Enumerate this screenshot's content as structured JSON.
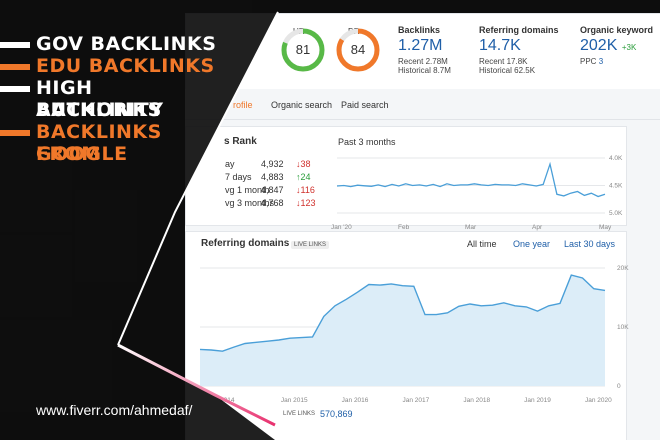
{
  "promo": {
    "lines": [
      {
        "text": "GOV BACKLINKS",
        "color": "#ffffff",
        "bar": "#ffffff"
      },
      {
        "text": "EDU BACKLINKS",
        "color": "#f0782a",
        "bar": "#f0782a"
      },
      {
        "text": "HIGH AUTHORITY",
        "color": "#ffffff",
        "bar": "#ffffff"
      },
      {
        "text": "BACKLINKS",
        "color": "#ffffff",
        "bar": null
      },
      {
        "text": "BACKLINKS FROM",
        "color": "#f0782a",
        "bar": "#f0782a"
      },
      {
        "text": "GOOGLE",
        "color": "#f0782a",
        "bar": null
      }
    ],
    "url": "www.fiverr.com/ahmedaf/",
    "accent": "#e8306e"
  },
  "metrics": {
    "ur": {
      "label": "UR",
      "value": "81",
      "fraction": 0.81,
      "color": "#58b947"
    },
    "dr": {
      "label": "DR",
      "value": "84",
      "fraction": 0.84,
      "color": "#f0782a"
    },
    "backlinks": {
      "label": "Backlinks",
      "value": "1.27M",
      "recent": "Recent 2.78M",
      "historical": "Historical 8.7M"
    },
    "referring": {
      "label": "Referring domains",
      "value": "14.7K",
      "recent": "Recent 17.8K",
      "historical": "Historical 62.5K"
    },
    "organic": {
      "label": "Organic keyword",
      "value": "202K",
      "change": "+3K",
      "ppc_label": "PPC",
      "ppc_value": "3"
    }
  },
  "tabs": [
    "rofile",
    "Organic search",
    "Paid search"
  ],
  "rank": {
    "title": "s Rank",
    "rows": [
      {
        "label": "ay",
        "value": "4,932",
        "change": "↓38",
        "dir": "down"
      },
      {
        "label": "7 days",
        "value": "4,883",
        "change": "↑24",
        "dir": "up"
      },
      {
        "label": "vg 1 month",
        "value": "4,847",
        "change": "↓116",
        "dir": "down"
      },
      {
        "label": "vg 3 months",
        "value": "4,768",
        "change": "↓123",
        "dir": "down"
      }
    ],
    "period": "Past 3 months"
  },
  "small_chart": {
    "type": "line",
    "x_ticks": [
      "Jan '20",
      "Feb",
      "Mar",
      "Apr",
      "May"
    ],
    "y_ticks": [
      "4.0K",
      "4.5K",
      "5.0K"
    ],
    "y_range": [
      4000,
      5000
    ],
    "values": [
      4510,
      4500,
      4520,
      4495,
      4505,
      4515,
      4490,
      4520,
      4480,
      4510,
      4470,
      4500,
      4490,
      4510,
      4480,
      4520,
      4470,
      4500,
      4490,
      4490,
      4470,
      4490,
      4500,
      4480,
      4490,
      4490,
      4500,
      4470,
      4490,
      4510,
      4480,
      4110,
      4660,
      4690,
      4640,
      4610,
      4680,
      4640,
      4700,
      4660
    ]
  },
  "refdomains": {
    "title": "Referring domains",
    "badge": "LIVE LINKS",
    "filters": [
      "All time",
      "One year",
      "Last 30 days"
    ],
    "active_filter": "All time",
    "footer_badge": "LIVE LINKS",
    "footer_value": "570,869"
  },
  "ref_chart": {
    "type": "line",
    "x_ticks": [
      "2014",
      "Jan 2015",
      "Jan 2016",
      "Jan 2017",
      "Jan 2018",
      "Jan 2019",
      "Jan 2020"
    ],
    "y_ticks": [
      "20K",
      "10K",
      "0"
    ],
    "y_range": [
      0,
      20000
    ],
    "values": [
      6200,
      6100,
      5900,
      6600,
      7200,
      7400,
      7600,
      7800,
      8100,
      8200,
      8300,
      11800,
      13600,
      14700,
      15900,
      17200,
      17100,
      17300,
      17000,
      16900,
      12100,
      12100,
      12400,
      13500,
      13900,
      13600,
      13700,
      14100,
      13600,
      13400,
      12700,
      13600,
      14000,
      18800,
      18300,
      16500,
      16200
    ]
  }
}
